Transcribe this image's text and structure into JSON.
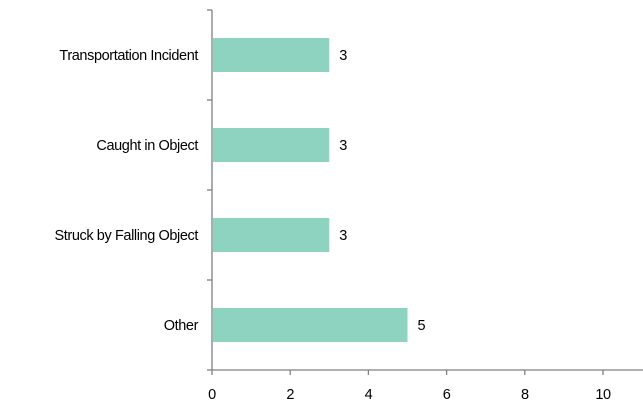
{
  "chart_data": {
    "type": "bar",
    "orientation": "horizontal",
    "title": "",
    "xlabel": "",
    "ylabel": "",
    "categories": [
      "Transportation Incident",
      "Caught in Object",
      "Struck by Falling Object",
      "Other"
    ],
    "values": [
      3,
      3,
      3,
      5
    ],
    "data_labels": [
      "3",
      "3",
      "3",
      "5"
    ],
    "xlim": [
      0,
      10
    ],
    "x_ticks": [
      "0",
      "2",
      "4",
      "6",
      "8",
      "10"
    ],
    "grid": false,
    "legend": "none",
    "colors": {
      "bar": "#8dd3bf",
      "axis": "#808080",
      "text": "#000000"
    }
  }
}
